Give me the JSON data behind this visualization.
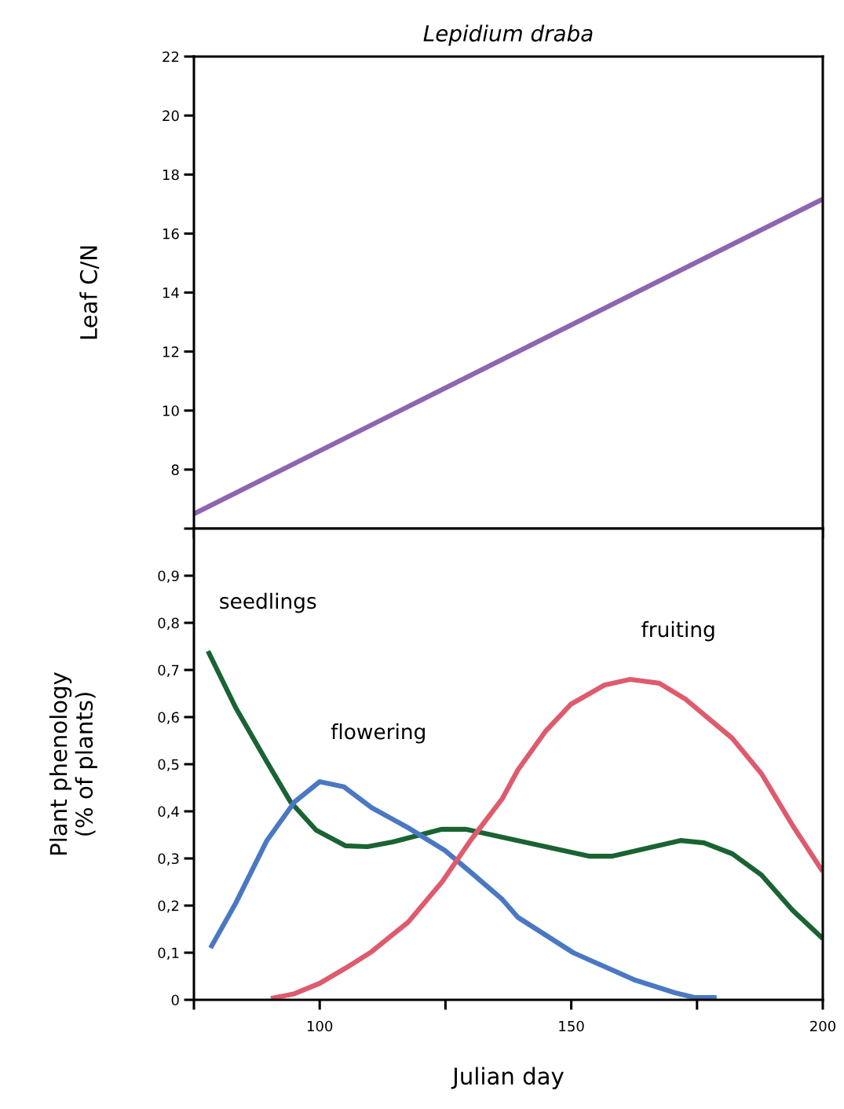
{
  "chart_data": [
    {
      "type": "line",
      "title": "Lepidium draba",
      "ylabel": "Leaf C/N",
      "xlim": [
        75,
        200
      ],
      "xticks": [
        {
          "value": 75,
          "label": null
        },
        {
          "value": 100,
          "label": null
        },
        {
          "value": 125,
          "label": null
        },
        {
          "value": 150,
          "label": null
        },
        {
          "value": 175,
          "label": null
        },
        {
          "value": 200,
          "label": null
        }
      ],
      "ylim": [
        6,
        22
      ],
      "yticks": [
        {
          "value": 6,
          "label": null
        },
        8,
        10,
        12,
        14,
        16,
        18,
        20,
        22
      ],
      "tick_labels": "y",
      "grid": false,
      "legend": false,
      "series": [
        {
          "color": "#8e65b0",
          "x": [
            75,
            200
          ],
          "values": [
            6.5,
            17.17
          ]
        }
      ]
    },
    {
      "type": "line",
      "xlabel": "Julian day",
      "ylabel": "Plant phenology\n(% of plants)",
      "xlim": [
        75,
        200
      ],
      "xticks": [
        {
          "value": 75,
          "label": null
        },
        100,
        {
          "value": 125,
          "label": null
        },
        150,
        {
          "value": 175,
          "label": null
        },
        200
      ],
      "ylim": [
        0,
        1
      ],
      "yticks": [
        0,
        {
          "value": 0.1,
          "label": "0,1"
        },
        {
          "value": 0.2,
          "label": "0,2"
        },
        {
          "value": 0.3,
          "label": "0,3"
        },
        {
          "value": 0.4,
          "label": "0,4"
        },
        {
          "value": 0.5,
          "label": "0,5"
        },
        {
          "value": 0.6,
          "label": "0,6"
        },
        {
          "value": 0.7,
          "label": "0,7"
        },
        {
          "value": 0.8,
          "label": "0,8"
        },
        {
          "value": 0.9,
          "label": "0,9"
        }
      ],
      "grid": false,
      "legend": false,
      "series": [
        {
          "name": "seedlings",
          "color": "#1a6332",
          "x": [
            77.8,
            83.3,
            89.5,
            94.2,
            99.3,
            105.1,
            109.5,
            114.5,
            124.3,
            129,
            136.3,
            144.9,
            153.5,
            158.2,
            171.7,
            176.4,
            182,
            187.8,
            194,
            200
          ],
          "values": [
            0.74,
            0.62,
            0.505,
            0.42,
            0.36,
            0.327,
            0.325,
            0.335,
            0.362,
            0.362,
            0.345,
            0.325,
            0.305,
            0.305,
            0.338,
            0.333,
            0.31,
            0.265,
            0.19,
            0.13
          ]
        },
        {
          "name": "flowering",
          "color": "#4a78c2",
          "x": [
            78.3,
            83.3,
            89.5,
            95,
            100,
            104.8,
            110.3,
            117.6,
            124.9,
            130.1,
            136.3,
            139.4,
            150.4,
            162.4,
            170.6,
            174.5,
            178.9
          ],
          "values": [
            0.11,
            0.205,
            0.338,
            0.42,
            0.463,
            0.452,
            0.408,
            0.365,
            0.317,
            0.27,
            0.213,
            0.175,
            0.1,
            0.043,
            0.015,
            0.005,
            0.005
          ]
        },
        {
          "name": "fruiting",
          "color": "#de5b6e",
          "x": [
            90.3,
            95,
            100,
            105.1,
            110.3,
            117.6,
            124.3,
            130.1,
            136.3,
            139.4,
            144.9,
            149.9,
            156.6,
            161.7,
            167.5,
            172.7,
            182,
            187.8,
            194,
            200
          ],
          "values": [
            0.003,
            0.013,
            0.035,
            0.067,
            0.102,
            0.165,
            0.25,
            0.34,
            0.427,
            0.488,
            0.57,
            0.627,
            0.668,
            0.68,
            0.672,
            0.638,
            0.555,
            0.48,
            0.37,
            0.272
          ]
        }
      ]
    }
  ]
}
